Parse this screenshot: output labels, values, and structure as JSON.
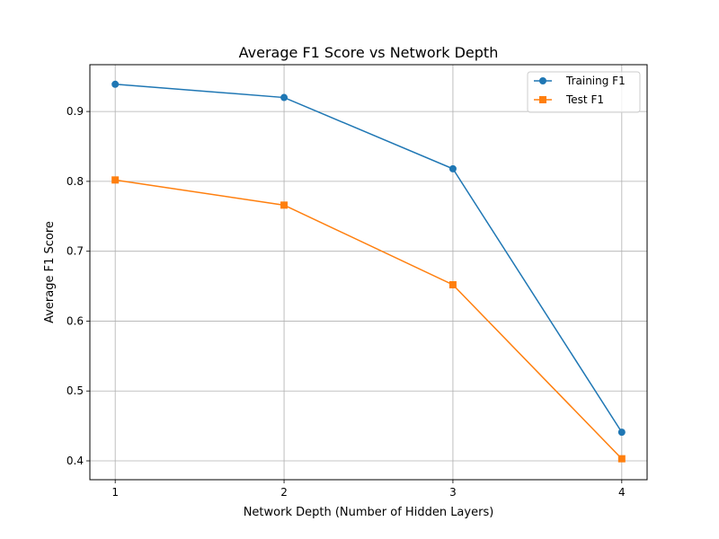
{
  "chart_data": {
    "type": "line",
    "title": "Average F1 Score vs Network Depth",
    "xlabel": "Network Depth (Number of Hidden Layers)",
    "ylabel": "Average F1 Score",
    "x": [
      1,
      2,
      3,
      4
    ],
    "x_tick_labels": [
      "1",
      "2",
      "3",
      "4"
    ],
    "xlim": [
      0.85,
      4.15
    ],
    "y_ticks": [
      0.4,
      0.5,
      0.6,
      0.7,
      0.8,
      0.9
    ],
    "y_tick_labels": [
      "0.4",
      "0.5",
      "0.6",
      "0.7",
      "0.8",
      "0.9"
    ],
    "ylim": [
      0.373,
      0.967
    ],
    "grid": true,
    "legend_position": "top-right",
    "series": [
      {
        "name": "Training F1",
        "values": [
          0.939,
          0.92,
          0.818,
          0.441
        ],
        "color": "#1f77b4",
        "marker": "circle"
      },
      {
        "name": "Test F1",
        "values": [
          0.802,
          0.766,
          0.652,
          0.403
        ],
        "color": "#ff7f0e",
        "marker": "square"
      }
    ]
  }
}
